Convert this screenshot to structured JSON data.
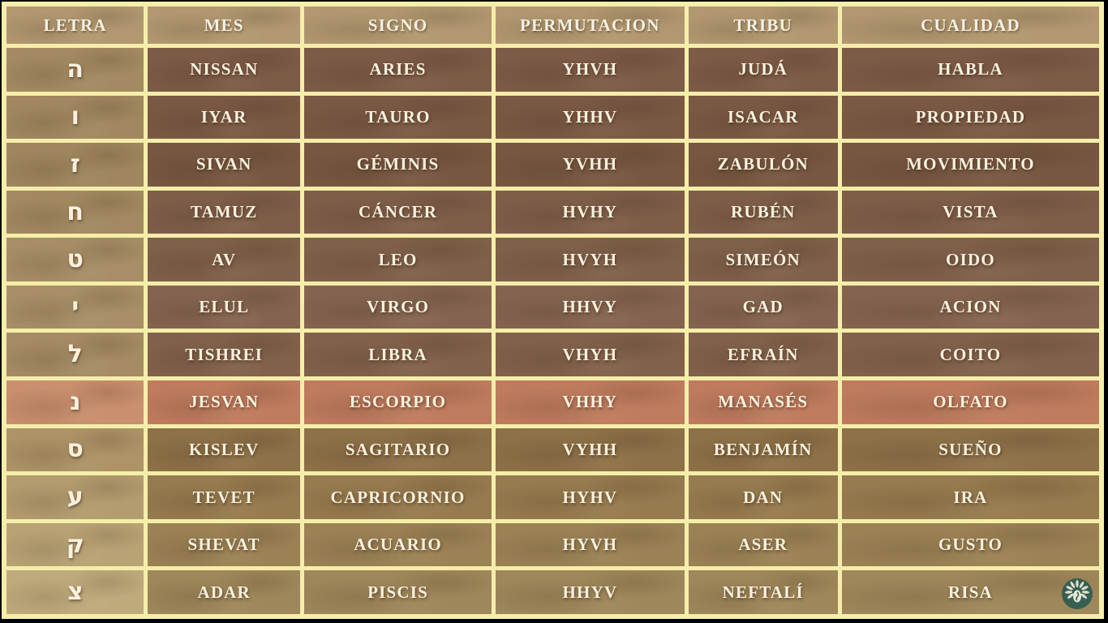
{
  "table": {
    "headers": [
      {
        "key": "letra",
        "label": "LETRA"
      },
      {
        "key": "mes",
        "label": "MES"
      },
      {
        "key": "signo",
        "label": "SIGNO"
      },
      {
        "key": "permutacion",
        "label": "PERMUTACION"
      },
      {
        "key": "tribu",
        "label": "TRIBU"
      },
      {
        "key": "cualidad",
        "label": "CUALIDAD"
      }
    ],
    "rows": [
      {
        "letra": "ה",
        "mes": "NISSAN",
        "signo": "ARIES",
        "permutacion": "YHVH",
        "tribu": "JUDÁ",
        "cualidad": "HABLA",
        "highlight": false
      },
      {
        "letra": "ו",
        "mes": "IYAR",
        "signo": "TAURO",
        "permutacion": "YHHV",
        "tribu": "ISACAR",
        "cualidad": "PROPIEDAD",
        "highlight": false
      },
      {
        "letra": "ז",
        "mes": "SIVAN",
        "signo": "GÉMINIS",
        "permutacion": "YVHH",
        "tribu": "ZABULÓN",
        "cualidad": "MOVIMIENTO",
        "highlight": false
      },
      {
        "letra": "ח",
        "mes": "TAMUZ",
        "signo": "CÁNCER",
        "permutacion": "HVHY",
        "tribu": "RUBÉN",
        "cualidad": "VISTA",
        "highlight": false
      },
      {
        "letra": "ט",
        "mes": "AV",
        "signo": "LEO",
        "permutacion": "HVYH",
        "tribu": "SIMEÓN",
        "cualidad": "OIDO",
        "highlight": false
      },
      {
        "letra": "י",
        "mes": "ELUL",
        "signo": "VIRGO",
        "permutacion": "HHVY",
        "tribu": "GAD",
        "cualidad": "ACION",
        "highlight": false
      },
      {
        "letra": "ל",
        "mes": "TISHREI",
        "signo": "LIBRA",
        "permutacion": "VHYH",
        "tribu": "EFRAÍN",
        "cualidad": "COITO",
        "highlight": false
      },
      {
        "letra": "נ",
        "mes": "JESVAN",
        "signo": "ESCORPIO",
        "permutacion": "VHHY",
        "tribu": "MANASÉS",
        "cualidad": "OLFATO",
        "highlight": true
      },
      {
        "letra": "ס",
        "mes": "KISLEV",
        "signo": "SAGITARIO",
        "permutacion": "VYHH",
        "tribu": "BENJAMÍN",
        "cualidad": "SUEÑO",
        "highlight": false
      },
      {
        "letra": "ע",
        "mes": "TEVET",
        "signo": "CAPRICORNIO",
        "permutacion": "HYHV",
        "tribu": "DAN",
        "cualidad": "IRA",
        "highlight": false
      },
      {
        "letra": "ק",
        "mes": "SHEVAT",
        "signo": "ACUARIO",
        "permutacion": "HYVH",
        "tribu": "ASER",
        "cualidad": "GUSTO",
        "highlight": false
      },
      {
        "letra": "צ",
        "mes": "ADAR",
        "signo": "PISCIS",
        "permutacion": "HHYV",
        "tribu": "NEFTALÍ",
        "cualidad": "RISA",
        "highlight": false
      }
    ]
  },
  "colors": {
    "grid_lines": "#f5eeaa",
    "header_bg": "#b19871",
    "header_text": "#f7f1e3",
    "cell_text": "#f9f1de",
    "highlight_bg": "#bf7b5e",
    "highlight_letter_bg": "#c98f6e",
    "row_bg": [
      "#7c5b47",
      "#7a5944",
      "#775741",
      "#7e5e49",
      "#7f604a",
      "#846450",
      "#81614b",
      "#bf7b5e",
      "#8d7148",
      "#967b4f",
      "#9b8255",
      "#9e875a"
    ],
    "letter_bg": [
      "#a38a62",
      "#a18860",
      "#9f865e",
      "#a28961",
      "#a78e66",
      "#a88f67",
      "#a58c64",
      "#c98f6e",
      "#ad9367",
      "#b39c6f",
      "#b9a375",
      "#bfaa7c"
    ],
    "logo_bg": "#2d5c50",
    "logo_fg": "#f2efe4",
    "letterbox": "#000000"
  },
  "logo": {
    "name": "channel-watermark-logo"
  }
}
